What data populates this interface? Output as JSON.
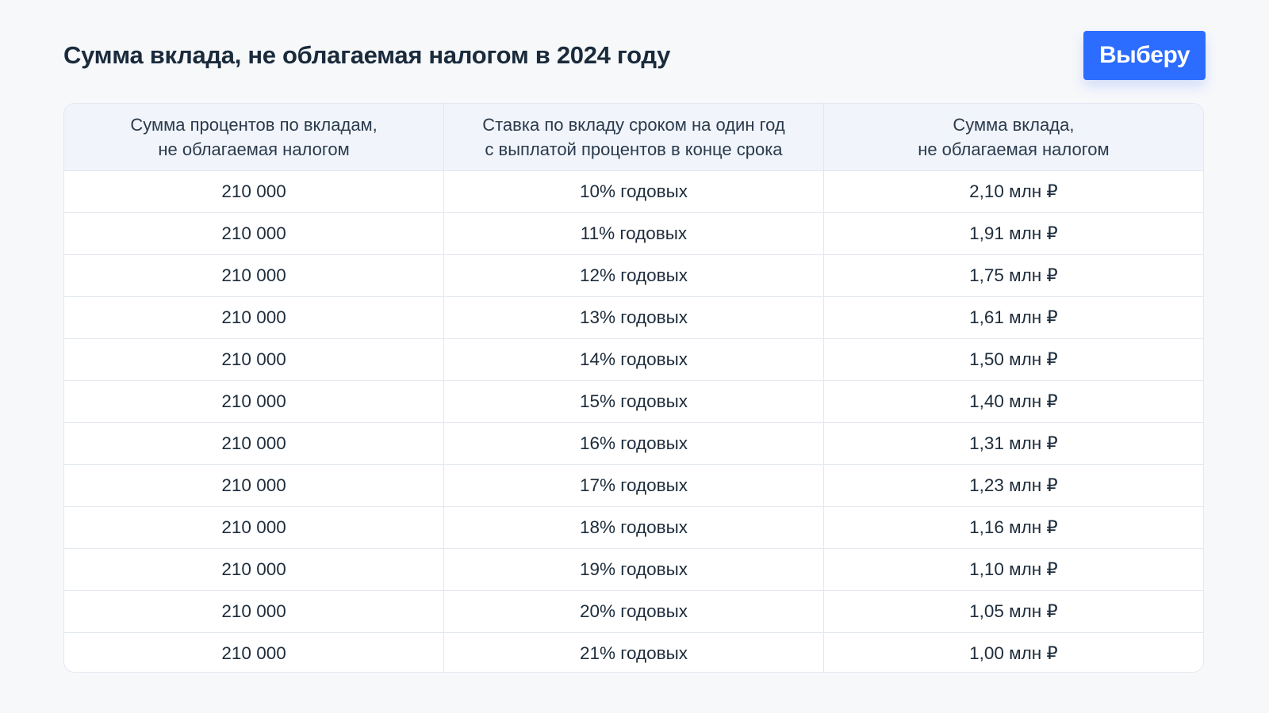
{
  "header": {
    "title": "Сумма вклада, не облагаемая налогом в 2024 году",
    "brand_button": "Выберу"
  },
  "colors": {
    "background": "#f7f8fa",
    "accent": "#2c6cff",
    "header_row": "#f1f5fb",
    "border": "#e3e8ef",
    "text": "#1a2b3c"
  },
  "table": {
    "columns": [
      "Сумма процентов по вкладам,\nне облагаемая налогом",
      "Ставка по вкладу сроком на один год\nс выплатой процентов в конце срока",
      "Сумма вклада,\nне облагаемая налогом"
    ],
    "rows": [
      [
        "210 000",
        "10% годовых",
        "2,10 млн ₽"
      ],
      [
        "210 000",
        "11% годовых",
        "1,91 млн ₽"
      ],
      [
        "210 000",
        "12% годовых",
        "1,75 млн ₽"
      ],
      [
        "210 000",
        "13% годовых",
        "1,61 млн ₽"
      ],
      [
        "210 000",
        "14% годовых",
        "1,50 млн ₽"
      ],
      [
        "210 000",
        "15% годовых",
        "1,40 млн ₽"
      ],
      [
        "210 000",
        "16% годовых",
        "1,31 млн ₽"
      ],
      [
        "210 000",
        "17% годовых",
        "1,23 млн ₽"
      ],
      [
        "210 000",
        "18% годовых",
        "1,16 млн ₽"
      ],
      [
        "210 000",
        "19% годовых",
        "1,10 млн ₽"
      ],
      [
        "210 000",
        "20% годовых",
        "1,05 млн ₽"
      ],
      [
        "210 000",
        "21% годовых",
        "1,00 млн ₽"
      ]
    ]
  }
}
